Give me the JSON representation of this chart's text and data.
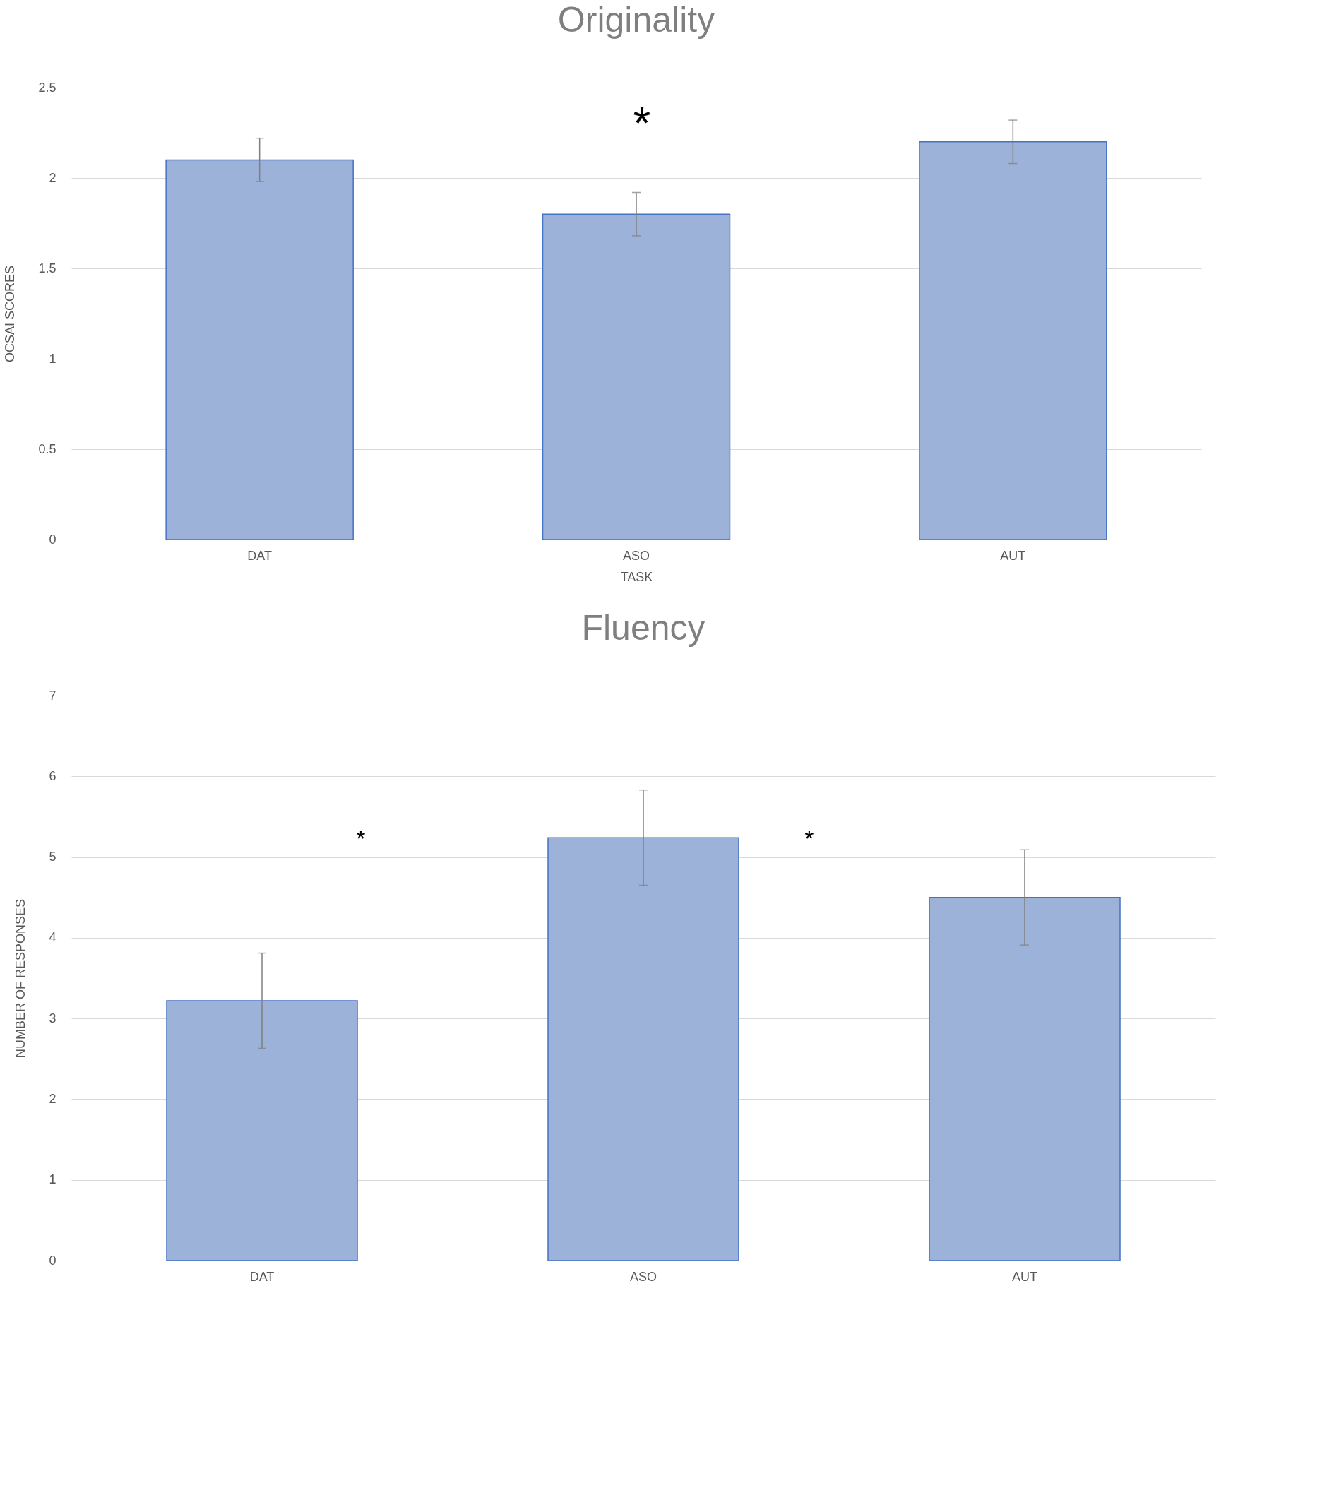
{
  "chart_data": [
    {
      "type": "bar",
      "title": "Originality",
      "xlabel": "TASK",
      "ylabel": "OCSAI SCORES",
      "categories": [
        "DAT",
        "ASO",
        "AUT"
      ],
      "values": [
        2.1,
        1.8,
        2.2
      ],
      "errors": [
        0.12,
        0.12,
        0.12
      ],
      "color": "#9db2d8",
      "ylim": [
        0,
        2.5
      ],
      "yticks": [
        0,
        0.5,
        1,
        1.5,
        2,
        2.5
      ],
      "grid": "y",
      "annotations": [
        "*"
      ]
    },
    {
      "type": "bar",
      "title": "Fluency",
      "ylabel": "NUMBER OF RESPONSES",
      "categories": [
        "DAT",
        "ASO",
        "AUT"
      ],
      "values": [
        3.22,
        5.24,
        4.5
      ],
      "errors": [
        0.59,
        0.59,
        0.59
      ],
      "color": "#9db2d8",
      "ylim": [
        0,
        7
      ],
      "yticks": [
        0,
        1,
        2,
        3,
        4,
        5,
        6,
        7
      ],
      "grid": "y",
      "annotations": [
        "*",
        "*"
      ]
    }
  ]
}
